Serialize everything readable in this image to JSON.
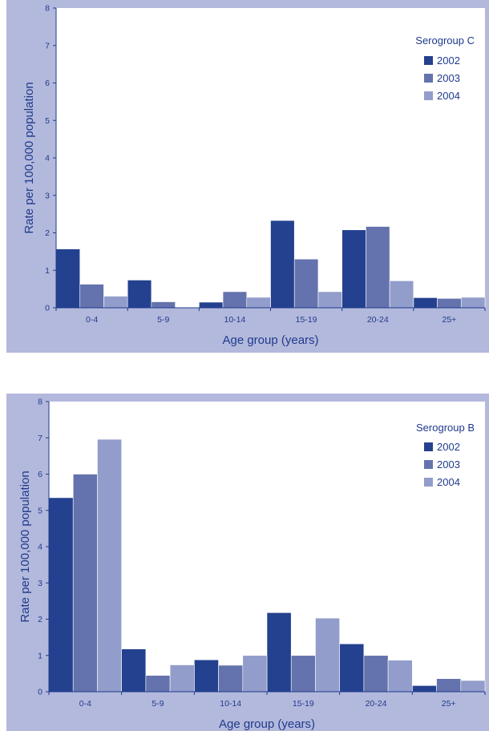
{
  "colors": {
    "series": [
      "#24418f",
      "#6473ad",
      "#929dcb"
    ],
    "panel": "#b3b9dc",
    "plot": "#ffffff",
    "text": "#1f3a8c"
  },
  "chart_data": [
    {
      "type": "bar",
      "legend_title": "Serogroup C",
      "categories": [
        "0-4",
        "5-9",
        "10-14",
        "15-19",
        "20-24",
        "25+"
      ],
      "series": [
        {
          "name": "2002",
          "values": [
            1.57,
            0.74,
            0.15,
            2.33,
            2.08,
            0.27
          ]
        },
        {
          "name": "2003",
          "values": [
            0.63,
            0.16,
            0.43,
            1.3,
            2.17,
            0.25
          ]
        },
        {
          "name": "2004",
          "values": [
            0.31,
            0.0,
            0.28,
            0.43,
            0.72,
            0.28
          ]
        }
      ],
      "xlabel": "Age group (years)",
      "ylabel": "Rate per 100,000 population",
      "ylim": [
        0,
        8
      ],
      "yticks": [
        0,
        1,
        2,
        3,
        4,
        5,
        6,
        7,
        8
      ],
      "grid": false,
      "legend_position": "top-right"
    },
    {
      "type": "bar",
      "legend_title": "Serogroup B",
      "categories": [
        "0-4",
        "5-9",
        "10-14",
        "15-19",
        "20-24",
        "25+"
      ],
      "series": [
        {
          "name": "2002",
          "values": [
            5.35,
            1.18,
            0.88,
            2.18,
            1.32,
            0.17
          ]
        },
        {
          "name": "2003",
          "values": [
            6.0,
            0.45,
            0.73,
            1.0,
            1.0,
            0.36
          ]
        },
        {
          "name": "2004",
          "values": [
            6.96,
            0.74,
            1.0,
            2.03,
            0.87,
            0.31
          ]
        }
      ],
      "xlabel": "Age group (years)",
      "ylabel": "Rate per 100,000 population",
      "ylim": [
        0,
        8
      ],
      "yticks": [
        0,
        1,
        2,
        3,
        4,
        5,
        6,
        7,
        8
      ],
      "grid": false,
      "legend_position": "top-right"
    }
  ]
}
